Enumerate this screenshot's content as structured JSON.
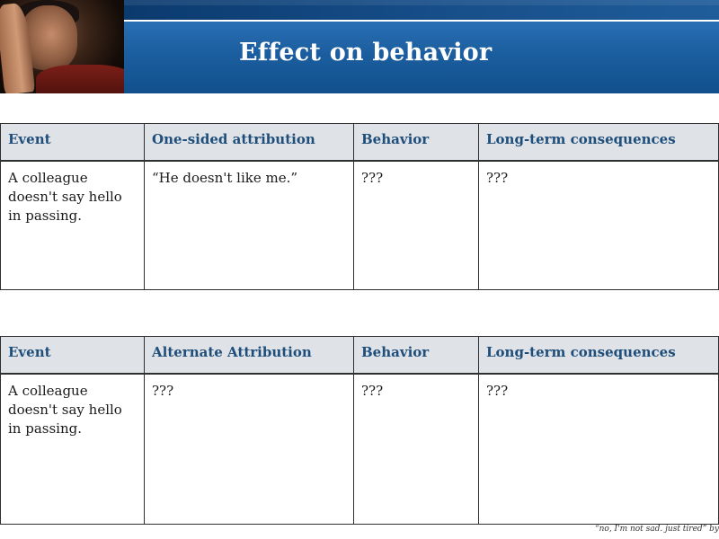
{
  "slide": {
    "title": "Effect on behavior",
    "photo_description_icon": "sad-man-photo"
  },
  "table1": {
    "headers": [
      "Event",
      "One-sided attribution",
      "Behavior",
      "Long-term consequences"
    ],
    "row": [
      "A colleague doesn't say hello in passing.",
      "“He doesn't like me.”",
      "???",
      "???"
    ]
  },
  "table2": {
    "headers": [
      "Event",
      "Alternate Attribution",
      "Behavior",
      "Long-term consequences"
    ],
    "row": [
      "A colleague doesn't say hello in passing.",
      "???",
      "???",
      "???"
    ]
  },
  "footer": {
    "credit": "“no, I'm not sad. just tired” by"
  },
  "colors": {
    "header_blue": "#1b5e9f",
    "header_dark_blue": "#0b3a6e",
    "table_header_bg": "#dfe3e8",
    "table_header_text": "#1f4e7a"
  }
}
